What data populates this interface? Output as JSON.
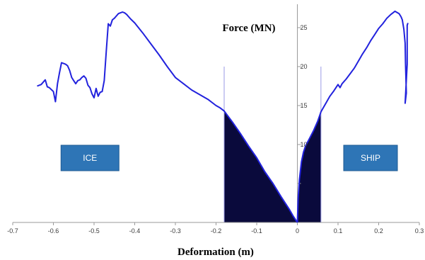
{
  "chart_data": {
    "type": "line",
    "title": "",
    "xlabel": "Deformation (m)",
    "ylabel": "Force (MN)",
    "xlim": [
      -0.7,
      0.3
    ],
    "ylim": [
      0,
      28
    ],
    "grid": false,
    "legend": "none",
    "x_ticks": [
      -0.7,
      -0.6,
      -0.5,
      -0.4,
      -0.3,
      -0.2,
      -0.1,
      0,
      0.1,
      0.2,
      0.3
    ],
    "x_tick_labels": [
      "-0.7",
      "-0.6",
      "-0.5",
      "-0.4",
      "-0.3",
      "-0.2",
      "-0.1",
      "0",
      "0.1",
      "0.2",
      "0.3"
    ],
    "y_ticks": [
      5,
      10,
      15,
      20,
      25
    ],
    "y_tick_labels": [
      "",
      "10",
      "15",
      "20",
      "25"
    ],
    "annotations": [
      {
        "text": "ICE",
        "anchor_x": -0.51,
        "anchor_y": 9,
        "fill": "#2e75b6"
      },
      {
        "text": "SHIP",
        "anchor_x": 0.18,
        "anchor_y": 9,
        "fill": "#2e75b6"
      }
    ],
    "shaded_regions": [
      {
        "name": "ice-energy",
        "x_from": -0.18,
        "x_to": 0.0,
        "y_cap": 20,
        "fill": "#0a0a3c"
      },
      {
        "name": "ship-energy",
        "x_from": 0.0,
        "x_to": 0.058,
        "y_cap": 20,
        "fill": "#0a0a3c"
      }
    ],
    "series": [
      {
        "color": "#2222dd",
        "x": [
          -0.64,
          -0.63,
          -0.62,
          -0.615,
          -0.61,
          -0.6,
          -0.595,
          -0.59,
          -0.585,
          -0.58,
          -0.575,
          -0.57,
          -0.565,
          -0.56,
          -0.555,
          -0.55,
          -0.545,
          -0.54,
          -0.535,
          -0.53,
          -0.525,
          -0.52,
          -0.515,
          -0.51,
          -0.505,
          -0.5,
          -0.495,
          -0.49,
          -0.485,
          -0.48,
          -0.475,
          -0.47,
          -0.465,
          -0.46,
          -0.455,
          -0.45,
          -0.445,
          -0.44,
          -0.435,
          -0.43,
          -0.425,
          -0.42,
          -0.41,
          -0.4,
          -0.38,
          -0.36,
          -0.34,
          -0.32,
          -0.3,
          -0.28,
          -0.26,
          -0.24,
          -0.22,
          -0.2,
          -0.19,
          -0.18,
          -0.16,
          -0.14,
          -0.12,
          -0.1,
          -0.08,
          -0.06,
          -0.04,
          -0.02,
          -0.01,
          0
        ],
        "y": [
          17.5,
          17.7,
          18.3,
          17.4,
          17.3,
          16.8,
          15.5,
          17.8,
          19.2,
          20.5,
          20.4,
          20.3,
          20.1,
          19.5,
          18.6,
          18.2,
          17.8,
          18.2,
          18.3,
          18.6,
          18.8,
          18.5,
          17.6,
          17.3,
          16.5,
          16.0,
          17.2,
          16.2,
          16.7,
          16.8,
          18.2,
          22.0,
          25.5,
          25.2,
          26.0,
          26.2,
          26.5,
          26.8,
          26.9,
          27.0,
          26.9,
          26.7,
          26.1,
          25.6,
          24.3,
          22.9,
          21.5,
          20.0,
          18.6,
          17.8,
          17.0,
          16.4,
          15.8,
          15.0,
          14.7,
          14.3,
          12.9,
          11.4,
          9.8,
          8.3,
          6.5,
          5.0,
          3.3,
          1.7,
          0.8,
          0
        ]
      },
      {
        "color": "#2222dd",
        "x": [
          0,
          0.002,
          0.005,
          0.01,
          0.015,
          0.02,
          0.03,
          0.04,
          0.05,
          0.058,
          0.07,
          0.08,
          0.09,
          0.1,
          0.105,
          0.11,
          0.12,
          0.13,
          0.14,
          0.15,
          0.16,
          0.17,
          0.18,
          0.19,
          0.2,
          0.21,
          0.22,
          0.23,
          0.24,
          0.25,
          0.255,
          0.258,
          0.262,
          0.265,
          0.266,
          0.268,
          0.265,
          0.27,
          0.27,
          0.272
        ],
        "y": [
          0,
          3.0,
          5.5,
          7.8,
          9.0,
          9.8,
          10.8,
          11.8,
          13.0,
          14.2,
          15.3,
          16.2,
          16.9,
          17.7,
          17.3,
          17.8,
          18.4,
          19.1,
          19.8,
          20.7,
          21.6,
          22.4,
          23.3,
          24.1,
          24.9,
          25.5,
          26.2,
          26.7,
          27.1,
          26.8,
          26.4,
          26.0,
          24.8,
          23.0,
          20.5,
          16.6,
          15.3,
          20.3,
          25.3,
          25.6
        ]
      }
    ]
  }
}
